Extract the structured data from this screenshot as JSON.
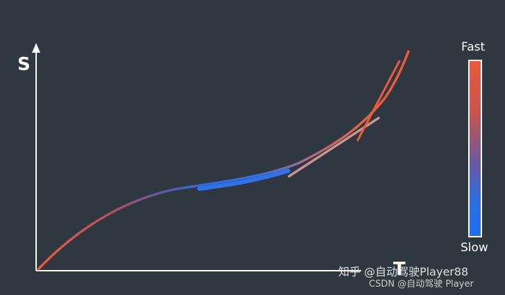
{
  "diagram": {
    "axis_y_label": "S",
    "axis_x_label": "T",
    "legend": {
      "top_label": "Fast",
      "bottom_label": "Slow",
      "colors": {
        "fast": "#e85a40",
        "slow": "#1f6ff0"
      }
    },
    "background": "#2f3740",
    "watermark": {
      "line1": "知乎 @自动驾驶Player88",
      "line2": "CSDN @自动驾驶 Player"
    }
  }
}
